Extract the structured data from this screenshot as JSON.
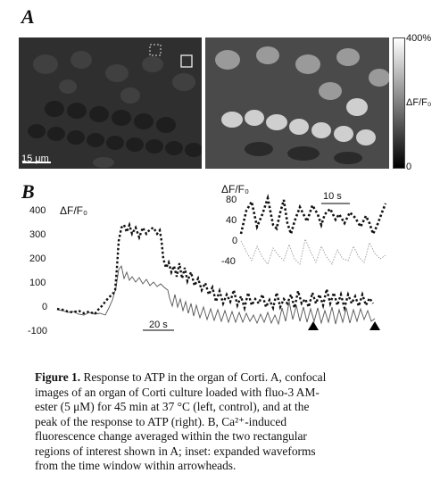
{
  "panel_a": {
    "label": "A",
    "scale_bar_label": "15 μm",
    "colorbar": {
      "top_label": "400%",
      "mid_label": "ΔF/F₀",
      "bottom_label": "0"
    }
  },
  "panel_b": {
    "label": "B",
    "main_ylabel": "ΔF/F₀",
    "main_yticks": [
      "400",
      "300",
      "200",
      "100",
      "0",
      "-100"
    ],
    "time_scale_label": "20 s",
    "inset": {
      "ylabel": "ΔF/F₀",
      "yticks": [
        "80",
        "40",
        "0",
        "-40"
      ],
      "time_scale_label": "10 s"
    }
  },
  "caption": {
    "figure_label": "Figure 1.",
    "lines": [
      "Response to ATP in the organ of Corti. A, confocal",
      "images of an organ of Corti culture loaded with fluo-3 AM-",
      "ester (5 μM) for 45 min at 37 °C (left, control), and at the",
      "peak of the response to ATP (right). B, Ca²⁺-induced",
      "fluorescence change averaged within the two rectangular",
      "regions of interest shown in A; inset: expanded waveforms",
      "from the time window within arrowheads."
    ]
  },
  "colors": {
    "dotted_trace": "#111111",
    "solid_trace": "#555555"
  }
}
